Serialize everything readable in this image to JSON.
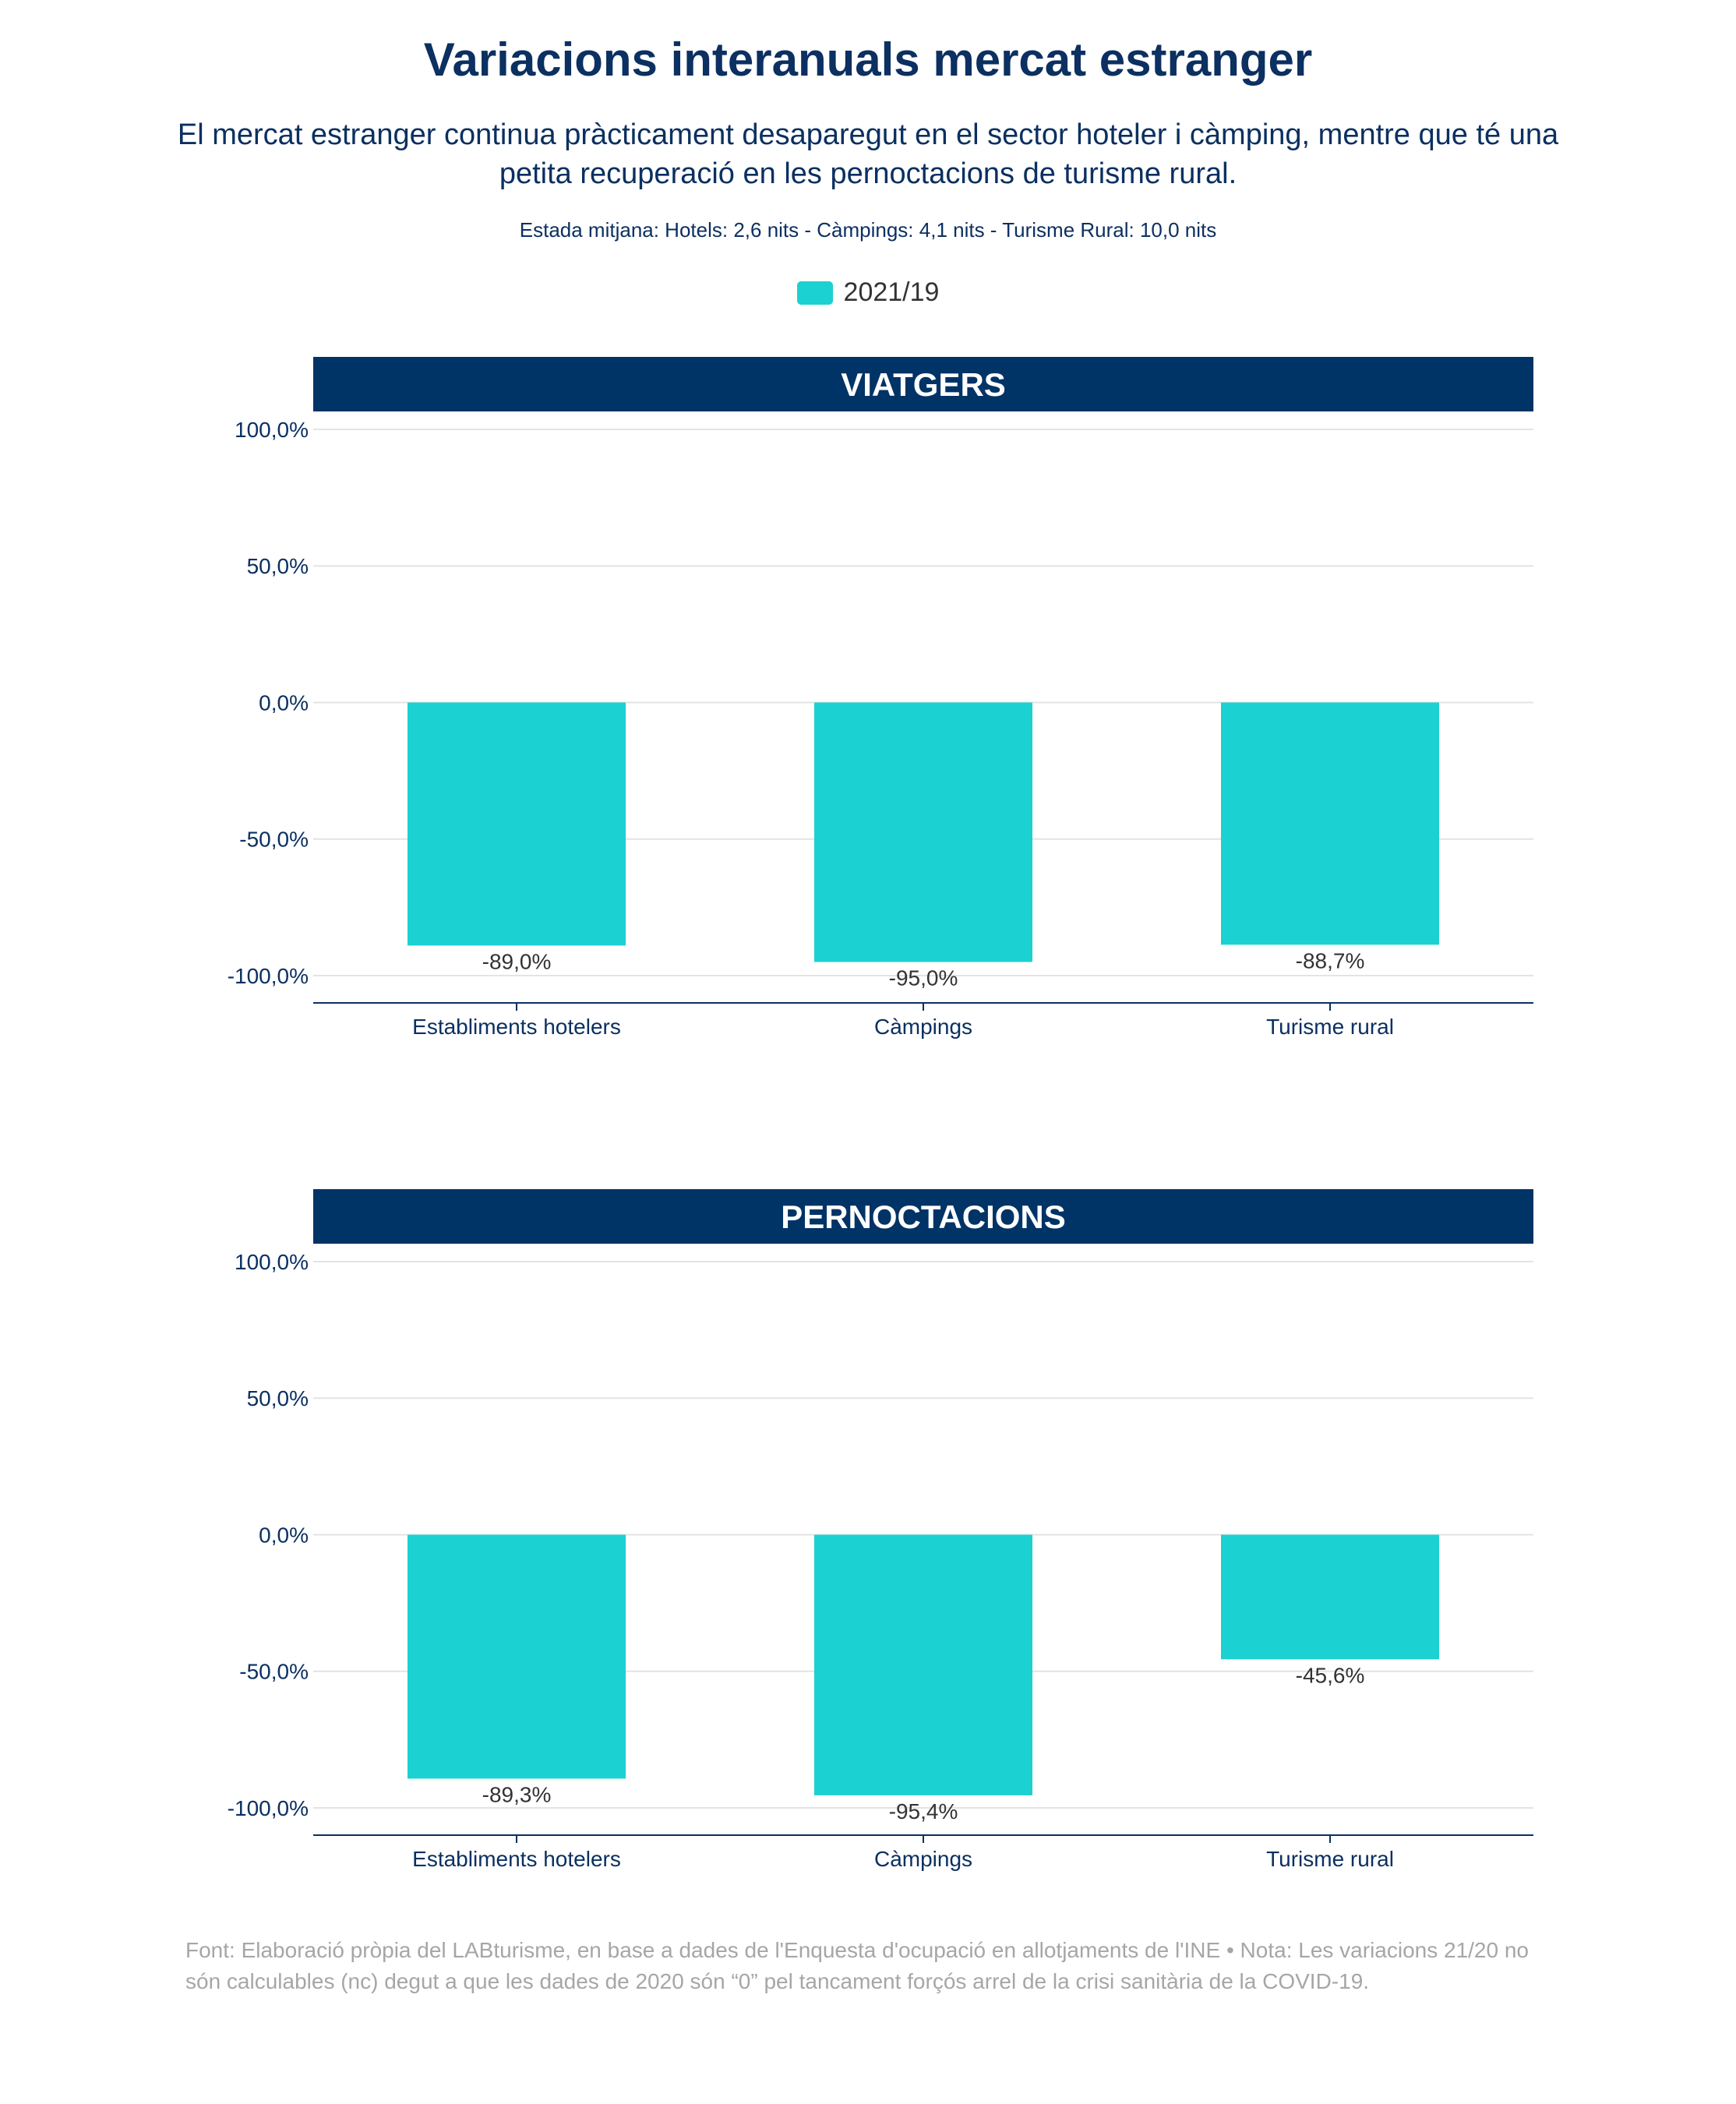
{
  "title": "Variacions interanuals mercat estranger",
  "subtitle": "El mercat estranger continua pràcticament desaparegut en el sector hoteler i càmping, mentre que té una petita recuperació en les pernoctacions de turisme rural.",
  "note": "Estada mitjana: Hotels: 2,6 nits - Càmpings: 4,1 nits - Turisme Rural: 10,0 nits",
  "legend": {
    "label": "2021/19",
    "color": "#1bd1d1"
  },
  "colors": {
    "header_bg": "#003366",
    "bar": "#1bd1d1",
    "text": "#0b3061",
    "grid": "#e3e3e3"
  },
  "chart_data": [
    {
      "type": "bar",
      "title": "VIATGERS",
      "categories": [
        "Establiments hotelers",
        "Càmpings",
        "Turisme rural"
      ],
      "series": [
        {
          "name": "2021/19",
          "values": [
            -89.0,
            -95.0,
            -88.7
          ]
        }
      ],
      "data_labels": [
        "-89,0%",
        "-95,0%",
        "-88,7%"
      ],
      "y_ticks": [
        100,
        50,
        0,
        -50,
        -100
      ],
      "y_tick_labels": [
        "100,0%",
        "50,0%",
        "0,0%",
        "-50,0%",
        "-100,0%"
      ],
      "ylim": [
        -110,
        100
      ],
      "grid": true
    },
    {
      "type": "bar",
      "title": "PERNOCTACIONS",
      "categories": [
        "Establiments hotelers",
        "Càmpings",
        "Turisme rural"
      ],
      "series": [
        {
          "name": "2021/19",
          "values": [
            -89.3,
            -95.4,
            -45.6
          ]
        }
      ],
      "data_labels": [
        "-89,3%",
        "-95,4%",
        "-45,6%"
      ],
      "y_ticks": [
        100,
        50,
        0,
        -50,
        -100
      ],
      "y_tick_labels": [
        "100,0%",
        "50,0%",
        "0,0%",
        "-50,0%",
        "-100,0%"
      ],
      "ylim": [
        -110,
        100
      ],
      "grid": true
    }
  ],
  "footer": "Font: Elaboració pròpia del LABturisme, en base a dades de l'Enquesta d'ocupació en allotjaments de l'INE • Nota: Les variacions 21/20 no són calculables (nc) degut a que les dades de 2020 són “0” pel tancament forçós arrel de la crisi sanitària de la COVID-19."
}
